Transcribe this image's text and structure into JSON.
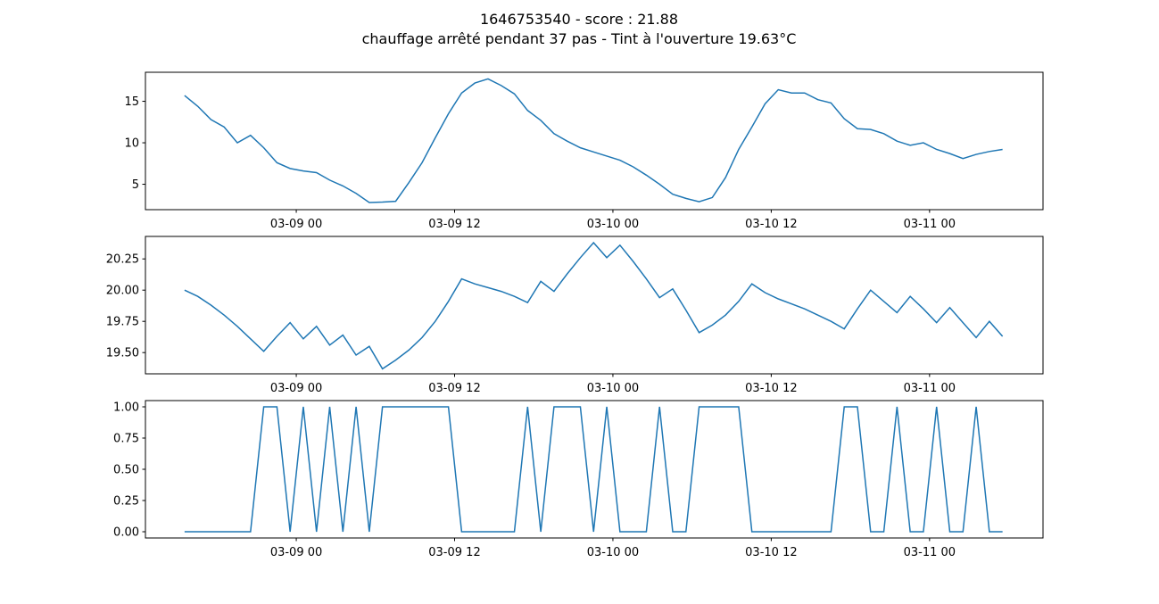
{
  "title": "1646753540 - score : 21.88",
  "subtitle": "chauffage arrêté pendant 37 pas - Tint à l'ouverture 19.63°C",
  "chart_data": [
    {
      "type": "line",
      "x": [
        "03-08 15:32",
        "03-08 16:32",
        "03-08 17:32",
        "03-08 18:32",
        "03-08 19:32",
        "03-08 20:32",
        "03-08 21:32",
        "03-08 22:32",
        "03-08 23:32",
        "03-09 00:32",
        "03-09 01:32",
        "03-09 02:32",
        "03-09 03:32",
        "03-09 04:32",
        "03-09 05:32",
        "03-09 06:32",
        "03-09 07:32",
        "03-09 08:32",
        "03-09 09:32",
        "03-09 10:32",
        "03-09 11:32",
        "03-09 12:32",
        "03-09 13:32",
        "03-09 14:32",
        "03-09 15:32",
        "03-09 16:32",
        "03-09 17:32",
        "03-09 18:32",
        "03-09 19:32",
        "03-09 20:32",
        "03-09 21:32",
        "03-09 22:32",
        "03-09 23:32",
        "03-10 00:32",
        "03-10 01:32",
        "03-10 02:32",
        "03-10 03:32",
        "03-10 04:32",
        "03-10 05:32",
        "03-10 06:32",
        "03-10 07:32",
        "03-10 08:32",
        "03-10 09:32",
        "03-10 10:32",
        "03-10 11:32",
        "03-10 12:32",
        "03-10 13:32",
        "03-10 14:32",
        "03-10 15:32",
        "03-10 16:32",
        "03-10 17:32",
        "03-10 18:32",
        "03-10 19:32",
        "03-10 20:32",
        "03-10 21:32",
        "03-10 22:32",
        "03-10 23:32",
        "03-11 00:32",
        "03-11 01:32",
        "03-11 02:32",
        "03-11 03:32",
        "03-11 04:32",
        "03-11 05:32"
      ],
      "series": [
        {
          "color": "#1f77b4",
          "values": [
            15.7,
            14.4,
            12.8,
            11.9,
            10.0,
            10.9,
            9.4,
            7.6,
            6.9,
            6.6,
            6.4,
            5.5,
            4.8,
            3.9,
            2.8,
            2.85,
            2.95,
            5.2,
            7.6,
            10.6,
            13.5,
            16.0,
            17.2,
            17.7,
            16.9,
            15.9,
            13.9,
            12.7,
            11.1,
            10.2,
            9.4,
            8.9,
            8.4,
            7.9,
            7.1,
            6.1,
            5.0,
            3.8,
            3.3,
            2.9,
            3.4,
            5.8,
            9.2,
            11.9,
            14.7,
            16.4,
            16.0,
            16.0,
            15.2,
            14.8,
            12.9,
            11.7,
            11.6,
            11.1,
            10.2,
            9.7,
            10.0,
            9.2,
            8.7,
            8.1,
            8.6,
            8.95,
            9.2
          ]
        }
      ],
      "xlim": [
        "03-08 12:34",
        "03-11 08:36"
      ],
      "xticks": [
        {
          "value": "03-09 00:00",
          "label": "03-09 00"
        },
        {
          "value": "03-09 12:00",
          "label": "03-09 12"
        },
        {
          "value": "03-10 00:00",
          "label": "03-10 00"
        },
        {
          "value": "03-10 12:00",
          "label": "03-10 12"
        },
        {
          "value": "03-11 00:00",
          "label": "03-11 00"
        }
      ],
      "ylim": [
        1.94,
        18.5
      ],
      "yticks": [
        5,
        10,
        15
      ]
    },
    {
      "type": "line",
      "x": [
        "03-08 15:32",
        "03-08 16:32",
        "03-08 17:32",
        "03-08 18:32",
        "03-08 19:32",
        "03-08 20:32",
        "03-08 21:32",
        "03-08 22:32",
        "03-08 23:32",
        "03-09 00:32",
        "03-09 01:32",
        "03-09 02:32",
        "03-09 03:32",
        "03-09 04:32",
        "03-09 05:32",
        "03-09 06:32",
        "03-09 07:32",
        "03-09 08:32",
        "03-09 09:32",
        "03-09 10:32",
        "03-09 11:32",
        "03-09 12:32",
        "03-09 13:32",
        "03-09 14:32",
        "03-09 15:32",
        "03-09 16:32",
        "03-09 17:32",
        "03-09 18:32",
        "03-09 19:32",
        "03-09 20:32",
        "03-09 21:32",
        "03-09 22:32",
        "03-09 23:32",
        "03-10 00:32",
        "03-10 01:32",
        "03-10 02:32",
        "03-10 03:32",
        "03-10 04:32",
        "03-10 05:32",
        "03-10 06:32",
        "03-10 07:32",
        "03-10 08:32",
        "03-10 09:32",
        "03-10 10:32",
        "03-10 11:32",
        "03-10 12:32",
        "03-10 13:32",
        "03-10 14:32",
        "03-10 15:32",
        "03-10 16:32",
        "03-10 17:32",
        "03-10 18:32",
        "03-10 19:32",
        "03-10 20:32",
        "03-10 21:32",
        "03-10 22:32",
        "03-10 23:32",
        "03-11 00:32",
        "03-11 01:32",
        "03-11 02:32",
        "03-11 03:32",
        "03-11 04:32",
        "03-11 05:32"
      ],
      "series": [
        {
          "color": "#1f77b4",
          "values": [
            20.0,
            19.95,
            19.88,
            19.8,
            19.71,
            19.61,
            19.51,
            19.63,
            19.74,
            19.61,
            19.71,
            19.56,
            19.64,
            19.48,
            19.55,
            19.37,
            19.44,
            19.52,
            19.62,
            19.75,
            19.91,
            20.09,
            20.05,
            20.02,
            19.99,
            19.95,
            19.9,
            20.07,
            19.99,
            20.13,
            20.26,
            20.38,
            20.26,
            20.36,
            20.23,
            20.09,
            19.94,
            20.01,
            19.84,
            19.66,
            19.72,
            19.8,
            19.91,
            20.05,
            19.98,
            19.93,
            19.89,
            19.85,
            19.8,
            19.75,
            19.69,
            19.85,
            20.0,
            19.91,
            19.82,
            19.95,
            19.85,
            19.74,
            19.86,
            19.74,
            19.62,
            19.75,
            19.63
          ]
        }
      ],
      "xlim": [
        "03-08 12:34",
        "03-11 08:36"
      ],
      "xticks": [
        {
          "value": "03-09 00:00",
          "label": "03-09 00"
        },
        {
          "value": "03-09 12:00",
          "label": "03-09 12"
        },
        {
          "value": "03-10 00:00",
          "label": "03-10 00"
        },
        {
          "value": "03-10 12:00",
          "label": "03-10 12"
        },
        {
          "value": "03-11 00:00",
          "label": "03-11 00"
        }
      ],
      "ylim": [
        19.33,
        20.43
      ],
      "yticks": [
        {
          "value": 19.5,
          "label": "19.50"
        },
        19.75,
        {
          "value": 20,
          "label": "20.00"
        },
        20.25
      ]
    },
    {
      "type": "line",
      "x": [
        "03-08 15:32",
        "03-08 16:32",
        "03-08 17:32",
        "03-08 18:32",
        "03-08 19:32",
        "03-08 20:32",
        "03-08 21:32",
        "03-08 22:32",
        "03-08 23:32",
        "03-09 00:32",
        "03-09 01:32",
        "03-09 02:32",
        "03-09 03:32",
        "03-09 04:32",
        "03-09 05:32",
        "03-09 06:32",
        "03-09 07:32",
        "03-09 08:32",
        "03-09 09:32",
        "03-09 10:32",
        "03-09 11:32",
        "03-09 12:32",
        "03-09 13:32",
        "03-09 14:32",
        "03-09 15:32",
        "03-09 16:32",
        "03-09 17:32",
        "03-09 18:32",
        "03-09 19:32",
        "03-09 20:32",
        "03-09 21:32",
        "03-09 22:32",
        "03-09 23:32",
        "03-10 00:32",
        "03-10 01:32",
        "03-10 02:32",
        "03-10 03:32",
        "03-10 04:32",
        "03-10 05:32",
        "03-10 06:32",
        "03-10 07:32",
        "03-10 08:32",
        "03-10 09:32",
        "03-10 10:32",
        "03-10 11:32",
        "03-10 12:32",
        "03-10 13:32",
        "03-10 14:32",
        "03-10 15:32",
        "03-10 16:32",
        "03-10 17:32",
        "03-10 18:32",
        "03-10 19:32",
        "03-10 20:32",
        "03-10 21:32",
        "03-10 22:32",
        "03-10 23:32",
        "03-11 00:32",
        "03-11 01:32",
        "03-11 02:32",
        "03-11 03:32",
        "03-11 04:32",
        "03-11 05:32"
      ],
      "series": [
        {
          "color": "#1f77b4",
          "values": [
            0,
            0,
            0,
            0,
            0,
            0,
            1,
            1,
            0,
            1,
            0,
            1,
            0,
            1,
            0,
            1,
            1,
            1,
            1,
            1,
            1,
            0,
            0,
            0,
            0,
            0,
            1,
            0,
            1,
            1,
            1,
            0,
            1,
            0,
            0,
            0,
            1,
            0,
            0,
            1,
            1,
            1,
            1,
            0,
            0,
            0,
            0,
            0,
            0,
            0,
            1,
            1,
            0,
            0,
            1,
            0,
            0,
            1,
            0,
            0,
            1,
            0,
            0
          ]
        }
      ],
      "xlim": [
        "03-08 12:34",
        "03-11 08:36"
      ],
      "xticks": [
        {
          "value": "03-09 00:00",
          "label": "03-09 00"
        },
        {
          "value": "03-09 12:00",
          "label": "03-09 12"
        },
        {
          "value": "03-10 00:00",
          "label": "03-10 00"
        },
        {
          "value": "03-10 12:00",
          "label": "03-10 12"
        },
        {
          "value": "03-11 00:00",
          "label": "03-11 00"
        }
      ],
      "ylim": [
        -0.05,
        1.05
      ],
      "yticks": [
        {
          "value": 0,
          "label": "0.00"
        },
        0.25,
        {
          "value": 0.5,
          "label": "0.50"
        },
        0.75,
        {
          "value": 1,
          "label": "1.00"
        }
      ]
    }
  ]
}
